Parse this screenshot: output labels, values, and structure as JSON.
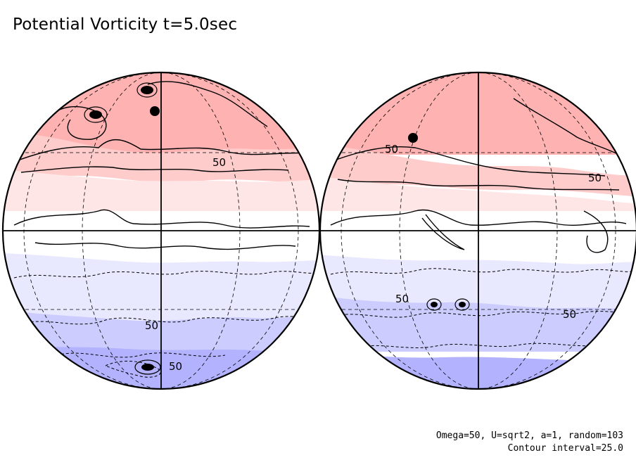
{
  "title": "Potential Vorticity t=5.0sec",
  "params_text": "Omega=50, U=sqrt2, a=1, random=103",
  "contour_text": "Contour interval=25.0",
  "colors": {
    "north_band_1": "#ffb2b2",
    "north_band_2": "#ffcccc",
    "north_band_3": "#ffe6e6",
    "equator_band": "#ffffff",
    "south_band_1": "#e8e8ff",
    "south_band_2": "#ccccff",
    "south_band_3": "#b2b2ff",
    "outline": "#000000"
  },
  "globes": [
    {
      "name": "western-hemisphere",
      "contour_labels": [
        "50",
        "50",
        "50"
      ]
    },
    {
      "name": "eastern-hemisphere",
      "contour_labels": [
        "50",
        "50",
        "50",
        "50"
      ]
    }
  ]
}
